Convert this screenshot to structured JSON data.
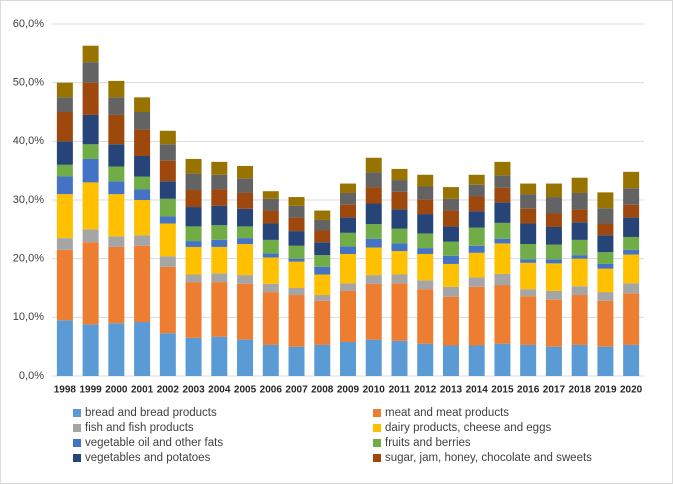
{
  "chart_data": {
    "type": "stacked_bar",
    "categories": [
      "1998",
      "1999",
      "2000",
      "2001",
      "2002",
      "2003",
      "2004",
      "2005",
      "2006",
      "2007",
      "2008",
      "2009",
      "2010",
      "2011",
      "2012",
      "2013",
      "2014",
      "2015",
      "2016",
      "2017",
      "2018",
      "2019",
      "2020"
    ],
    "series": [
      {
        "name": "bread and bread products",
        "color": "#5b9bd5",
        "values": [
          9.5,
          8.8,
          9,
          9.2,
          7.3,
          6.5,
          6.7,
          6.2,
          5.3,
          5,
          5.3,
          5.8,
          6.2,
          6,
          5.5,
          5.2,
          5.2,
          5.5,
          5.3,
          5,
          5.3,
          5,
          5.3
        ]
      },
      {
        "name": "meat and meat products",
        "color": "#ed7d31",
        "values": [
          12,
          14,
          13,
          13,
          11.3,
          9.5,
          9.3,
          9.5,
          9,
          8.8,
          7.5,
          8.7,
          9.5,
          9.8,
          9.3,
          8.3,
          10,
          10,
          8.3,
          8,
          8.5,
          7.8,
          8.8
        ]
      },
      {
        "name": "fish and fish products",
        "color": "#a5a5a5",
        "values": [
          2,
          2.2,
          1.8,
          1.8,
          1.8,
          1.3,
          1.5,
          1.5,
          1.4,
          1.2,
          1,
          1.3,
          1.5,
          1.5,
          1.5,
          1.7,
          1.6,
          1.9,
          1.2,
          1.5,
          1.5,
          1.5,
          1.7
        ]
      },
      {
        "name": "dairy products, cheese and eggs",
        "color": "#ffc000",
        "values": [
          7.5,
          8,
          7.2,
          6,
          5.6,
          4.7,
          4.5,
          5.3,
          4.5,
          4.5,
          3.5,
          5,
          4.7,
          4,
          4.5,
          3.9,
          4.2,
          5.2,
          4.5,
          4.7,
          4.7,
          4,
          4.9
        ]
      },
      {
        "name": "vegetable oil and other fats",
        "color": "#4472c4",
        "values": [
          3,
          4,
          2.2,
          1.8,
          1.2,
          1,
          1.2,
          1,
          0.7,
          0.5,
          1.3,
          1.3,
          1.5,
          1.3,
          1,
          1.4,
          1.2,
          0.8,
          0.6,
          0.7,
          0.6,
          0.8,
          0.8
        ]
      },
      {
        "name": "fruits and berries",
        "color": "#70ad47",
        "values": [
          2,
          2.5,
          2.5,
          2.2,
          3,
          2.5,
          2.5,
          2,
          2.3,
          2.2,
          2,
          2.3,
          2.5,
          2.5,
          2.5,
          2.4,
          3.1,
          2.7,
          2.6,
          2.5,
          2.6,
          2,
          2.2
        ]
      },
      {
        "name": "vegetables and potatoes",
        "color": "#264478",
        "values": [
          4,
          5,
          3.8,
          3.5,
          3,
          3.3,
          3.3,
          3,
          2.8,
          2.5,
          2.2,
          2.6,
          3.5,
          3.3,
          3.3,
          2.6,
          2.8,
          3.5,
          3.5,
          3,
          3,
          2.9,
          3.3
        ]
      },
      {
        "name": "sugar, jam, honey, chocolate and sweets",
        "color": "#9e480e",
        "values": [
          5,
          5.5,
          5,
          4.5,
          3.5,
          2.9,
          2.8,
          2.7,
          2.2,
          2.3,
          2,
          2.2,
          2.8,
          3,
          2.5,
          2.7,
          2.5,
          2.5,
          2.5,
          2.3,
          2.2,
          2,
          2.2
        ]
      },
      {
        "color": "#636363",
        "values": [
          2.5,
          3.5,
          3,
          3,
          2.8,
          2.8,
          2.5,
          2.5,
          2,
          2,
          1.8,
          2,
          2.5,
          2,
          2.2,
          2,
          2,
          2.1,
          2.5,
          2.8,
          2.8,
          2.6,
          2.8
        ]
      },
      {
        "color": "#997300",
        "values": [
          2.5,
          2.8,
          2.8,
          2.5,
          2.3,
          2.5,
          2.2,
          2.1,
          1.3,
          1.5,
          1.6,
          1.6,
          2.5,
          1.9,
          2,
          2,
          1.7,
          2.3,
          1.8,
          2.3,
          2.6,
          2.7,
          2.8
        ]
      }
    ],
    "ylim": [
      0,
      60
    ],
    "yticks": [
      {
        "value": 0,
        "label": "0,0%"
      },
      {
        "value": 10,
        "label": "10,0%"
      },
      {
        "value": 20,
        "label": "20,0%"
      },
      {
        "value": 30,
        "label": "30,0%"
      },
      {
        "value": 40,
        "label": "40,0%"
      },
      {
        "value": 50,
        "label": "50,0%"
      },
      {
        "value": 60,
        "label": "60,0%"
      }
    ],
    "grid": true
  }
}
